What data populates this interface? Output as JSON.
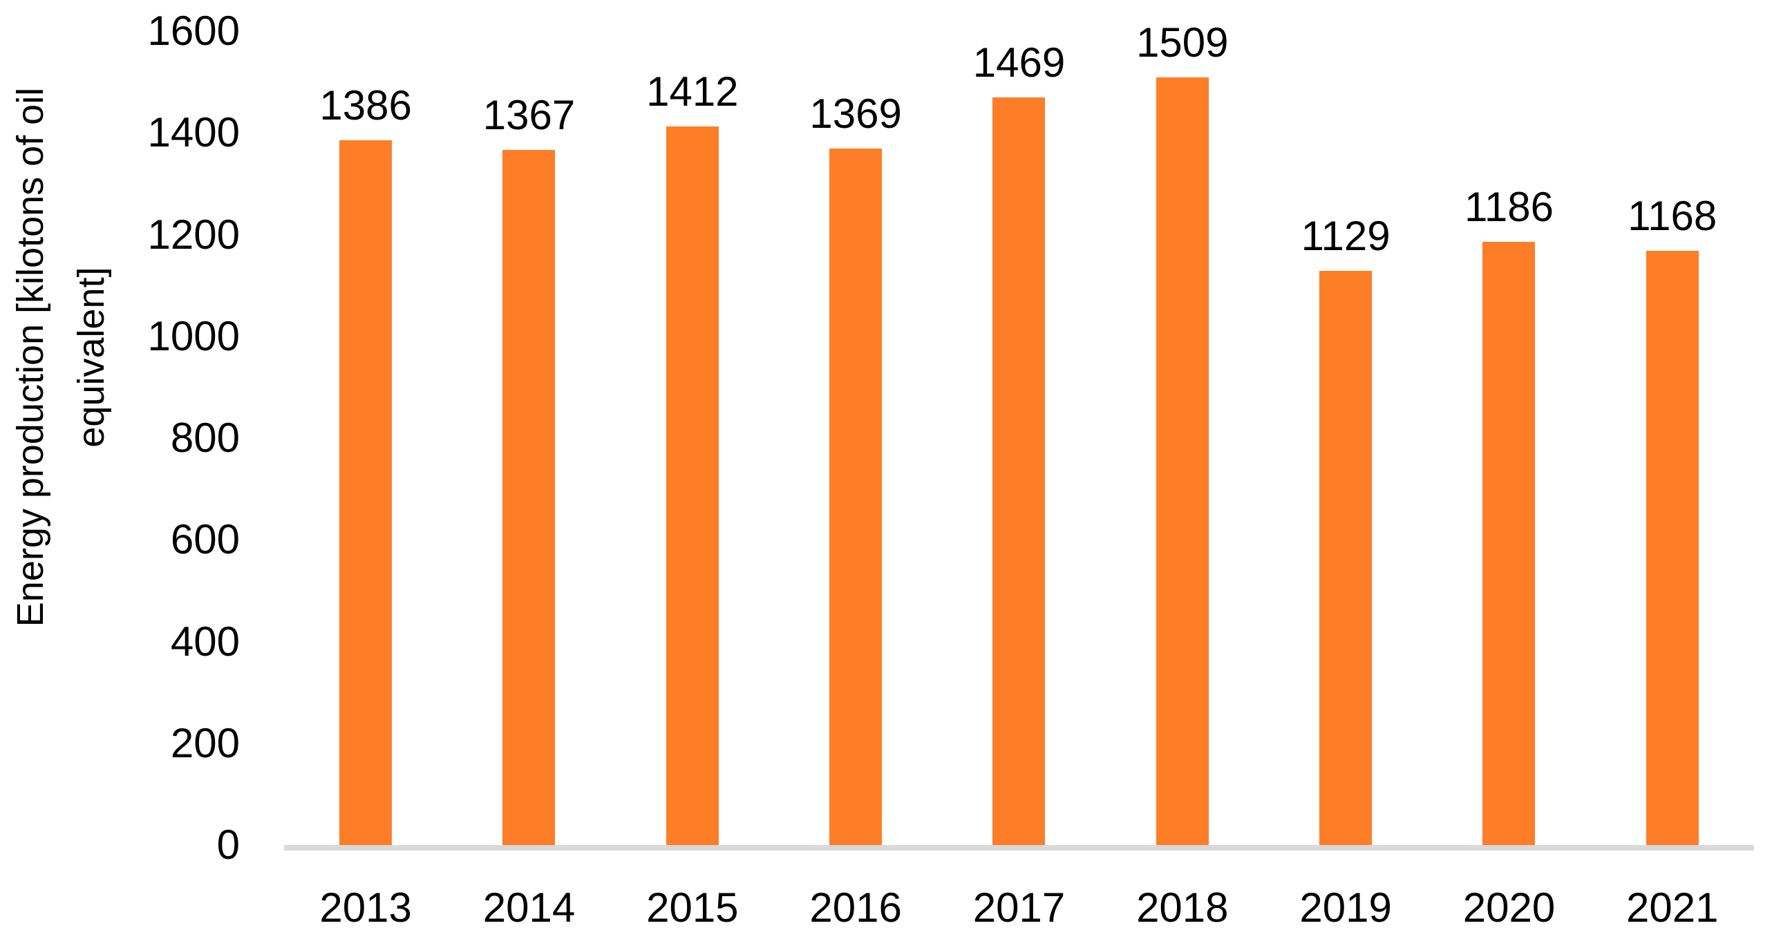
{
  "chart_data": {
    "type": "bar",
    "title": "",
    "categories": [
      "2013",
      "2014",
      "2015",
      "2016",
      "2017",
      "2018",
      "2019",
      "2020",
      "2021"
    ],
    "values": [
      1386,
      1367,
      1412,
      1369,
      1469,
      1509,
      1129,
      1186,
      1168
    ],
    "xlabel": "",
    "ylabel": "Energy production [kilotons of oil equivalent]",
    "ylabel_lines": [
      "Energy production [kilotons of oil",
      "equivalent]"
    ],
    "ylim": [
      0,
      1600
    ],
    "yticks": [
      0,
      200,
      400,
      600,
      800,
      1000,
      1200,
      1400,
      1600
    ],
    "grid": "off",
    "legend_position": "none",
    "data_labels": "above-bars",
    "bar_color": "#FD7E27",
    "baseline_color": "#D9D9D9",
    "text_color": "#000000"
  }
}
